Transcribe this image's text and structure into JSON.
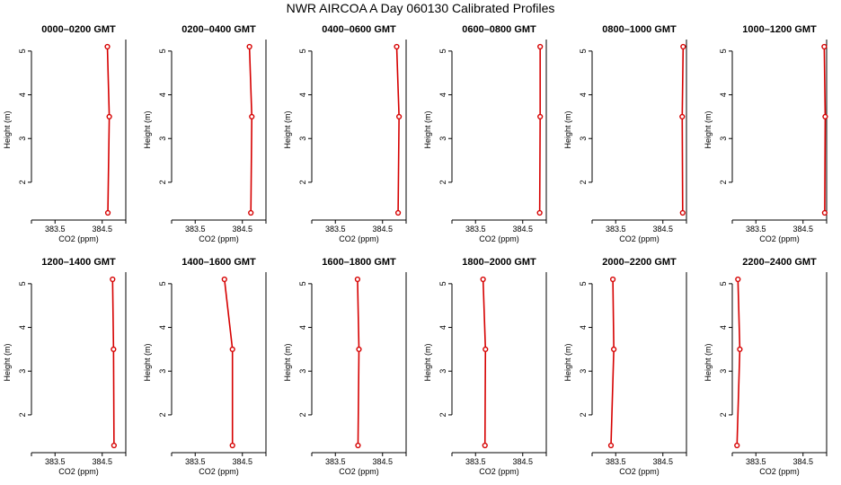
{
  "figure": {
    "title": "NWR AIRCOA A  Day 060130  Calibrated Profiles"
  },
  "colors": {
    "profile_line": "#d60000",
    "axis": "#000000",
    "background": "#ffffff"
  },
  "chart_data": [
    {
      "type": "line",
      "title": "0000–0200 GMT",
      "xlabel": "CO2 (ppm)",
      "ylabel": "Height (m)",
      "xlim": [
        383.0,
        385.0
      ],
      "ylim": [
        1.3,
        5.1
      ],
      "xticks": [
        383.5,
        384.5
      ],
      "yticks": [
        2,
        3,
        4,
        5
      ],
      "grid": false,
      "legend": "none",
      "series": [
        {
          "x": [
            384.61,
            384.65,
            384.62
          ],
          "y": [
            5.1,
            3.5,
            1.3
          ]
        }
      ]
    },
    {
      "type": "line",
      "title": "0200–0400 GMT",
      "xlabel": "CO2 (ppm)",
      "ylabel": "Height (m)",
      "xlim": [
        383.0,
        385.0
      ],
      "ylim": [
        1.3,
        5.1
      ],
      "xticks": [
        383.5,
        384.5
      ],
      "yticks": [
        2,
        3,
        4,
        5
      ],
      "grid": false,
      "legend": "none",
      "series": [
        {
          "x": [
            384.65,
            384.7,
            384.68
          ],
          "y": [
            5.1,
            3.5,
            1.3
          ]
        }
      ]
    },
    {
      "type": "line",
      "title": "0400–0600 GMT",
      "xlabel": "CO2 (ppm)",
      "ylabel": "Height (m)",
      "xlim": [
        383.0,
        385.0
      ],
      "ylim": [
        1.3,
        5.1
      ],
      "xticks": [
        383.5,
        384.5
      ],
      "yticks": [
        2,
        3,
        4,
        5
      ],
      "grid": false,
      "legend": "none",
      "series": [
        {
          "x": [
            384.8,
            384.85,
            384.83
          ],
          "y": [
            5.1,
            3.5,
            1.3
          ]
        }
      ]
    },
    {
      "type": "line",
      "title": "0600–0800 GMT",
      "xlabel": "CO2 (ppm)",
      "ylabel": "Height (m)",
      "xlim": [
        383.0,
        385.0
      ],
      "ylim": [
        1.3,
        5.1
      ],
      "xticks": [
        383.5,
        384.5
      ],
      "yticks": [
        2,
        3,
        4,
        5
      ],
      "grid": false,
      "legend": "none",
      "series": [
        {
          "x": [
            384.87,
            384.87,
            384.86
          ],
          "y": [
            5.1,
            3.5,
            1.3
          ]
        }
      ]
    },
    {
      "type": "line",
      "title": "0800–1000 GMT",
      "xlabel": "CO2 (ppm)",
      "ylabel": "Height (m)",
      "xlim": [
        383.0,
        385.0
      ],
      "ylim": [
        1.3,
        5.1
      ],
      "xticks": [
        383.5,
        384.5
      ],
      "yticks": [
        2,
        3,
        4,
        5
      ],
      "grid": false,
      "legend": "none",
      "series": [
        {
          "x": [
            384.93,
            384.91,
            384.92
          ],
          "y": [
            5.1,
            3.5,
            1.3
          ]
        }
      ]
    },
    {
      "type": "line",
      "title": "1000–1200 GMT",
      "xlabel": "CO2 (ppm)",
      "ylabel": "Height (m)",
      "xlim": [
        383.0,
        385.0
      ],
      "ylim": [
        1.3,
        5.1
      ],
      "xticks": [
        383.5,
        384.5
      ],
      "yticks": [
        2,
        3,
        4,
        5
      ],
      "grid": false,
      "legend": "none",
      "series": [
        {
          "x": [
            384.95,
            384.97,
            384.96
          ],
          "y": [
            5.1,
            3.5,
            1.3
          ]
        }
      ]
    },
    {
      "type": "line",
      "title": "1200–1400 GMT",
      "xlabel": "CO2 (ppm)",
      "ylabel": "Height (m)",
      "xlim": [
        383.0,
        385.0
      ],
      "ylim": [
        1.3,
        5.1
      ],
      "xticks": [
        383.5,
        384.5
      ],
      "yticks": [
        2,
        3,
        4,
        5
      ],
      "grid": false,
      "legend": "none",
      "series": [
        {
          "x": [
            384.72,
            384.74,
            384.75
          ],
          "y": [
            5.1,
            3.5,
            1.3
          ]
        }
      ]
    },
    {
      "type": "line",
      "title": "1400–1600 GMT",
      "xlabel": "CO2 (ppm)",
      "ylabel": "Height (m)",
      "xlim": [
        383.0,
        385.0
      ],
      "ylim": [
        1.3,
        5.1
      ],
      "xticks": [
        383.5,
        384.5
      ],
      "yticks": [
        2,
        3,
        4,
        5
      ],
      "grid": false,
      "legend": "none",
      "series": [
        {
          "x": [
            384.12,
            384.29,
            384.29
          ],
          "y": [
            5.1,
            3.5,
            1.3
          ]
        }
      ]
    },
    {
      "type": "line",
      "title": "1600–1800 GMT",
      "xlabel": "CO2 (ppm)",
      "ylabel": "Height (m)",
      "xlim": [
        383.0,
        385.0
      ],
      "ylim": [
        1.3,
        5.1
      ],
      "xticks": [
        383.5,
        384.5
      ],
      "yticks": [
        2,
        3,
        4,
        5
      ],
      "grid": false,
      "legend": "none",
      "series": [
        {
          "x": [
            383.97,
            384.0,
            383.98
          ],
          "y": [
            5.1,
            3.5,
            1.3
          ]
        }
      ]
    },
    {
      "type": "line",
      "title": "1800–2000 GMT",
      "xlabel": "CO2 (ppm)",
      "ylabel": "Height (m)",
      "xlim": [
        383.0,
        385.0
      ],
      "ylim": [
        1.3,
        5.1
      ],
      "xticks": [
        383.5,
        384.5
      ],
      "yticks": [
        2,
        3,
        4,
        5
      ],
      "grid": false,
      "legend": "none",
      "series": [
        {
          "x": [
            383.66,
            383.71,
            383.7
          ],
          "y": [
            5.1,
            3.5,
            1.3
          ]
        }
      ]
    },
    {
      "type": "line",
      "title": "2000–2200 GMT",
      "xlabel": "CO2 (ppm)",
      "ylabel": "Height (m)",
      "xlim": [
        383.0,
        385.0
      ],
      "ylim": [
        1.3,
        5.1
      ],
      "xticks": [
        383.5,
        384.5
      ],
      "yticks": [
        2,
        3,
        4,
        5
      ],
      "grid": false,
      "legend": "none",
      "series": [
        {
          "x": [
            383.44,
            383.46,
            383.4
          ],
          "y": [
            5.1,
            3.5,
            1.3
          ]
        }
      ]
    },
    {
      "type": "line",
      "title": "2200–2400 GMT",
      "xlabel": "CO2 (ppm)",
      "ylabel": "Height (m)",
      "xlim": [
        383.0,
        385.0
      ],
      "ylim": [
        1.3,
        5.1
      ],
      "xticks": [
        383.5,
        384.5
      ],
      "yticks": [
        2,
        3,
        4,
        5
      ],
      "grid": false,
      "legend": "none",
      "series": [
        {
          "x": [
            383.12,
            383.16,
            383.1
          ],
          "y": [
            5.1,
            3.5,
            1.3
          ]
        }
      ]
    }
  ]
}
